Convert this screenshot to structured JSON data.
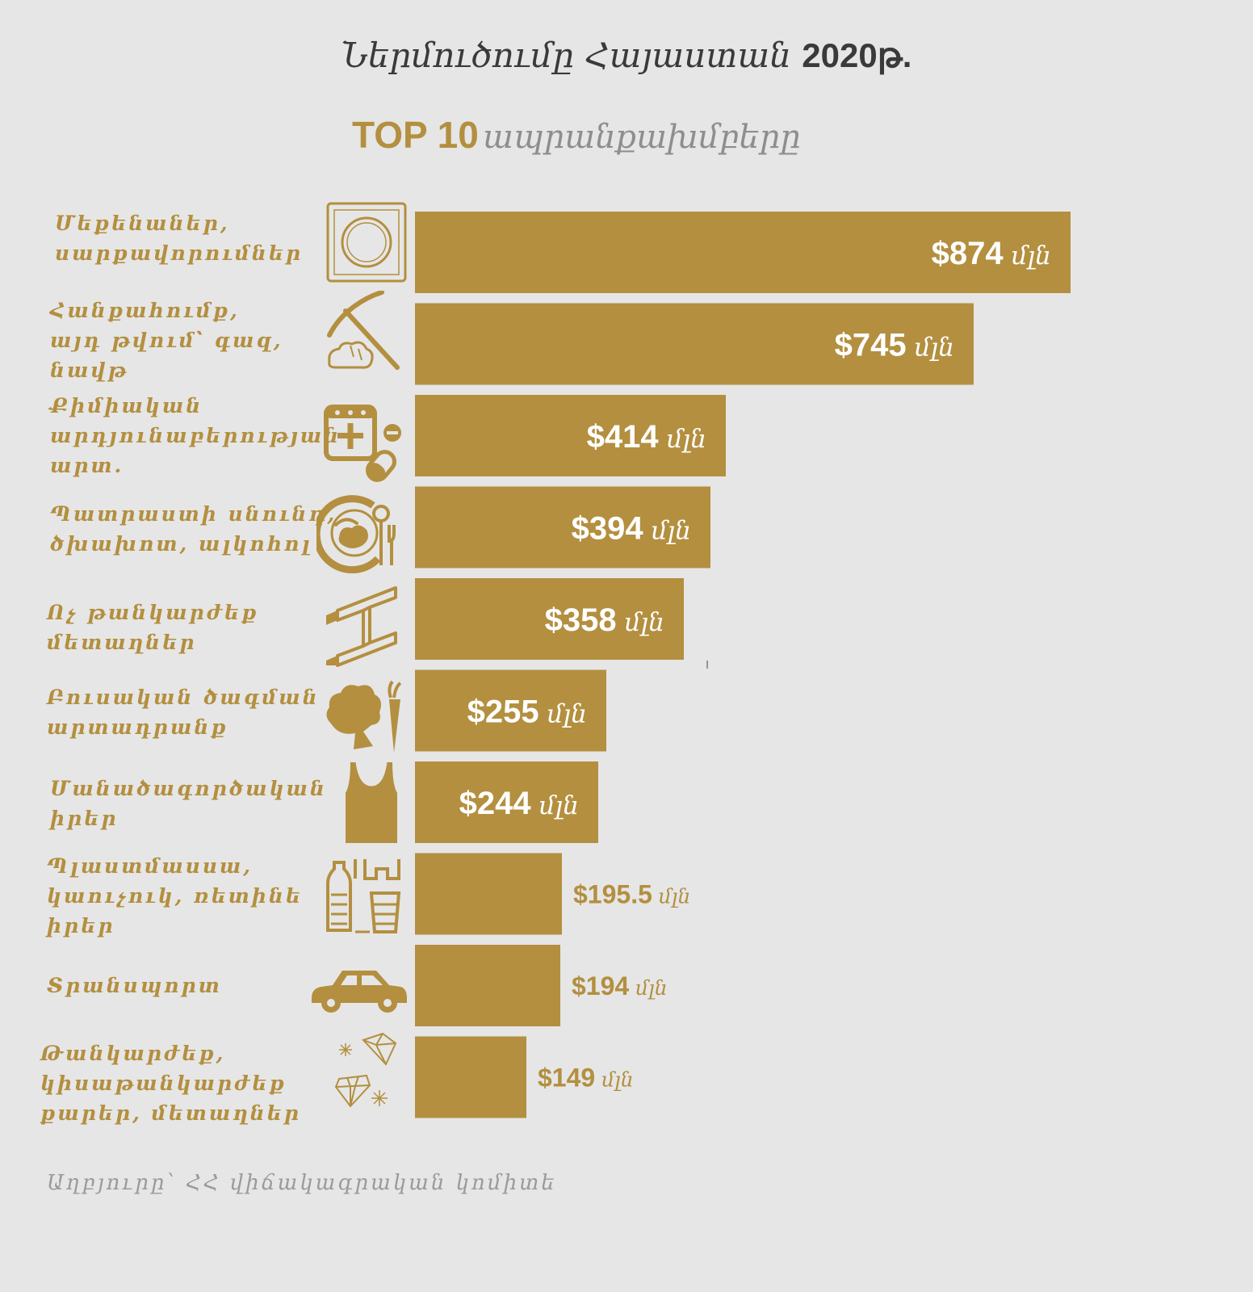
{
  "title_text": "Ներմուծումը Հայաստան",
  "title_year": "2020թ.",
  "subtitle_top": "TOP 10",
  "subtitle_rest": "ապրանքախմբերը",
  "source": "Աղբյուրը՝  ՀՀ վիճակագրական կոմիտե",
  "colors": {
    "bar": "#b38f3f",
    "background": "#e6e6e6",
    "inside_label": "#ffffff"
  },
  "chart_data": {
    "type": "bar",
    "orientation": "horizontal",
    "unit": "մլն",
    "categories": [
      "Մեքենաներ,\nսարքավորումներ",
      "Հանքահումք,\nայդ թվում՝ գազ,\nնավթ",
      "Քիմիական\n արդյունաբերության\nարտ.",
      "Պատրաստի սնունդ,\nծխախոտ, ալկոհոլ",
      "Ոչ թանկարժեք\nմետաղներ",
      "Բուսական ծագման\nարտադրանք",
      "Մանածագործական\nիրեր",
      "Պլաստմասսա,\nկաուչուկ, ռետինե\nիրեր",
      "Տրանսպորտ",
      "Թանկարժեք,\nկիսաթանկարժեք\nքարեր, մետաղներ"
    ],
    "values": [
      874,
      745,
      414,
      394,
      358,
      255,
      244,
      195.5,
      194,
      149
    ],
    "value_labels": [
      "$874",
      "$745",
      "$414",
      "$394",
      "$358",
      "$255",
      "$244",
      "$195.5",
      "$194",
      "$149"
    ],
    "icons": [
      "washing-machine-icon",
      "pickaxe-icon",
      "medicine-icon",
      "food-plate-icon",
      "metal-beam-icon",
      "vegetables-icon",
      "tank-top-icon",
      "plastic-bottles-icon",
      "car-icon",
      "diamond-icon"
    ]
  }
}
